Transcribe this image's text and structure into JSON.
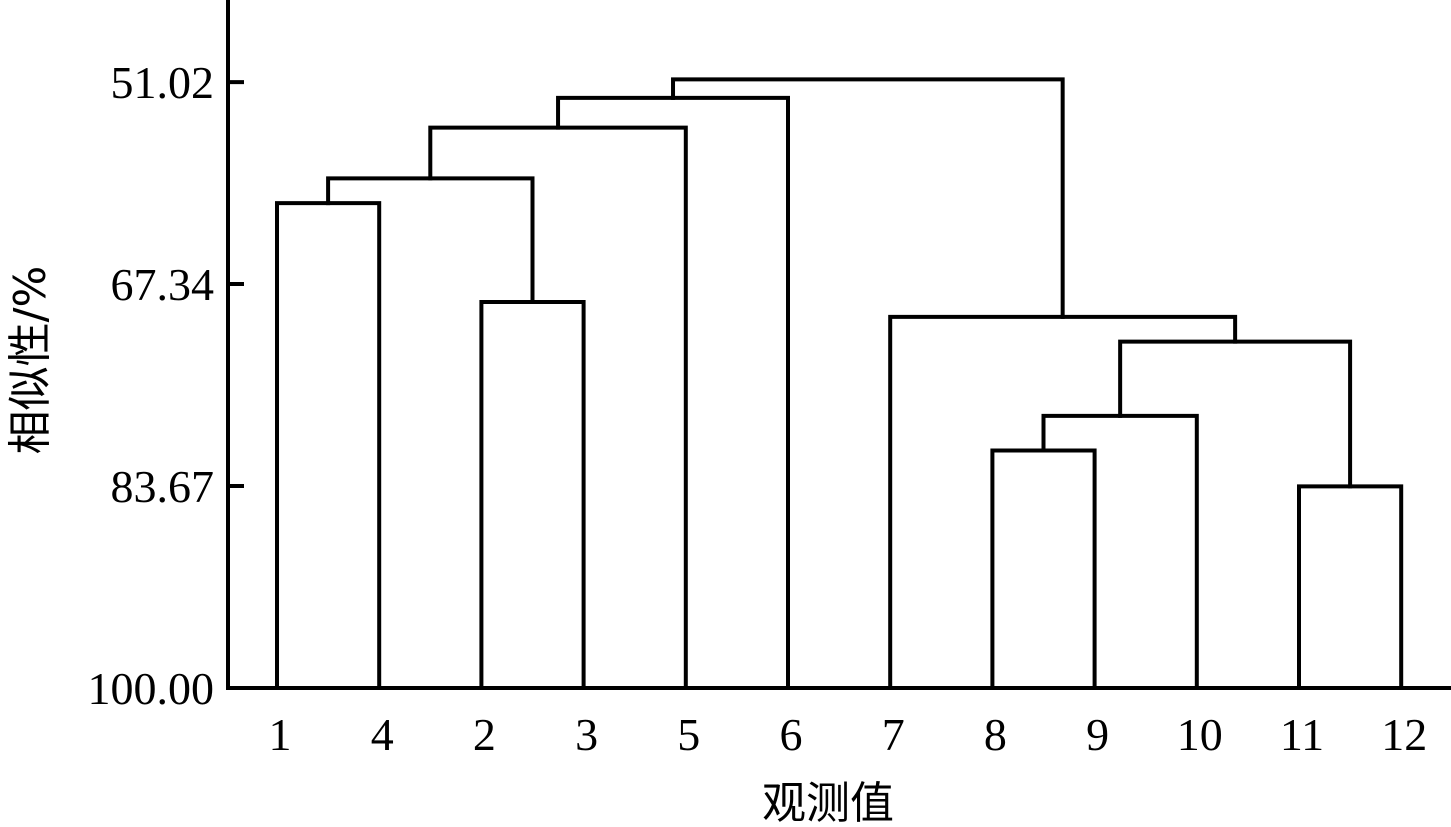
{
  "chart_data": {
    "type": "dendrogram",
    "xlabel": "观测值",
    "ylabel": "相似性/%",
    "y_axis": {
      "ticks": [
        51.02,
        67.34,
        83.67,
        100.0
      ],
      "tick_labels": [
        "51.02",
        "67.34",
        "83.67",
        "100.00"
      ],
      "range": [
        46.0,
        100.0
      ],
      "inverted": true
    },
    "leaf_order": [
      "1",
      "4",
      "2",
      "3",
      "5",
      "6",
      "7",
      "8",
      "9",
      "10",
      "11",
      "12"
    ],
    "merges": [
      {
        "id": "m1",
        "left": "1",
        "right": "4",
        "similarity": 60.8
      },
      {
        "id": "m2",
        "left": "2",
        "right": "3",
        "similarity": 68.8
      },
      {
        "id": "m3",
        "left": "m1",
        "right": "m2",
        "similarity": 58.8
      },
      {
        "id": "m4",
        "left": "m3",
        "right": "5",
        "similarity": 54.7
      },
      {
        "id": "m5",
        "left": "m4",
        "right": "6",
        "similarity": 52.3
      },
      {
        "id": "m6",
        "left": "8",
        "right": "9",
        "similarity": 80.8
      },
      {
        "id": "m7",
        "left": "m6",
        "right": "10",
        "similarity": 78.0
      },
      {
        "id": "m8",
        "left": "11",
        "right": "12",
        "similarity": 83.7
      },
      {
        "id": "m9",
        "left": "m7",
        "right": "m8",
        "similarity": 72.0
      },
      {
        "id": "m10",
        "left": "7",
        "right": "m9",
        "similarity": 70.0
      },
      {
        "id": "m11",
        "left": "m5",
        "right": "m10",
        "similarity": 50.8
      }
    ]
  }
}
